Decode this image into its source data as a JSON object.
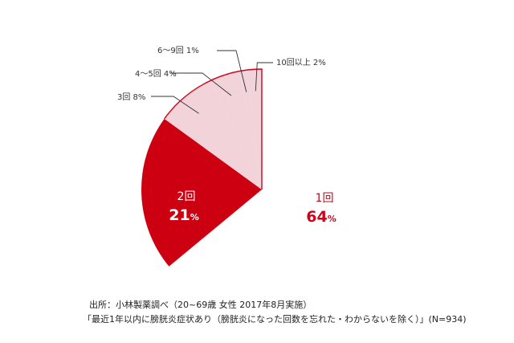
{
  "chart_data": {
    "type": "pie",
    "title": "",
    "slices": [
      {
        "label": "1回",
        "value": 64,
        "display": "64",
        "unit": "%",
        "color": "#ffffff",
        "label_color": "#d0021b"
      },
      {
        "label": "2回",
        "value": 21,
        "display": "21",
        "unit": "%",
        "color": "#cc0011",
        "label_color": "#ffffff"
      },
      {
        "label": "3回",
        "value": 8,
        "display": "3回 8%",
        "color": "#f2d3da"
      },
      {
        "label": "4～5回",
        "value": 4,
        "display": "4～5回 4%",
        "color": "#f2d3da"
      },
      {
        "label": "6～9回",
        "value": 1,
        "display": "6～9回 1%",
        "color": "#f2d3da"
      },
      {
        "label": "10回以上",
        "value": 2,
        "display": "10回以上 2%",
        "color": "#f2d3da"
      }
    ],
    "colors": {
      "outline": "#d0021b",
      "leader": "#333333",
      "callout_text": "#333333"
    }
  },
  "caption": {
    "source": "出所：小林製薬調べ（20~69歳 女性 2017年8月実施）",
    "note": "「最近1年以内に膀胱炎症状あり（膀胱炎になった回数を忘れた・わからないを除く）」(N=934)"
  }
}
